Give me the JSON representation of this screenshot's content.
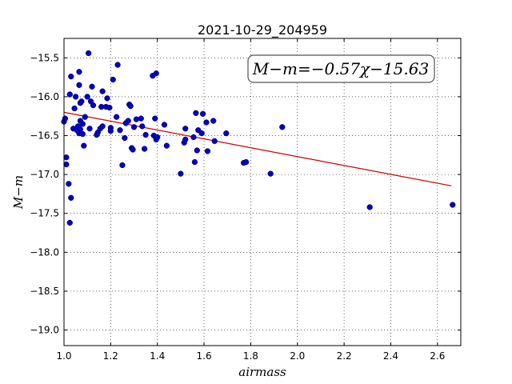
{
  "chart_data": {
    "type": "scatter",
    "title": "2021-10-29_204959",
    "xlabel": "airmass",
    "ylabel": "M−m",
    "xlim": [
      1.0,
      2.7
    ],
    "ylim": [
      -19.2,
      -15.25
    ],
    "y_inverted": true,
    "grid": true,
    "xticks": [
      1.0,
      1.2,
      1.4,
      1.6,
      1.8,
      2.0,
      2.2,
      2.4,
      2.6
    ],
    "xtick_labels": [
      "1.0",
      "1.2",
      "1.4",
      "1.6",
      "1.8",
      "2.0",
      "2.2",
      "2.4",
      "2.6"
    ],
    "yticks": [
      -15.5,
      -16.0,
      -16.5,
      -17.0,
      -17.5,
      -18.0,
      -18.5,
      -19.0
    ],
    "ytick_labels": [
      "−15.5",
      "−16.0",
      "−16.5",
      "−17.0",
      "−17.5",
      "−18.0",
      "−18.5",
      "−19.0"
    ],
    "annotation": "M−m=−0.57χ−15.63",
    "fit": {
      "slope": -0.57,
      "intercept": -15.63,
      "x_range": [
        1.0,
        2.66
      ],
      "color": "#cc0000"
    },
    "marker_color": "#0000cc",
    "points": [
      [
        1.0,
        -16.32
      ],
      [
        1.005,
        -16.28
      ],
      [
        1.01,
        -16.78
      ],
      [
        1.01,
        -16.87
      ],
      [
        1.02,
        -17.12
      ],
      [
        1.025,
        -17.62
      ],
      [
        1.03,
        -17.3
      ],
      [
        1.025,
        -15.97
      ],
      [
        1.03,
        -15.74
      ],
      [
        1.04,
        -16.41
      ],
      [
        1.045,
        -16.15
      ],
      [
        1.05,
        -16.0
      ],
      [
        1.055,
        -16.43
      ],
      [
        1.06,
        -16.38
      ],
      [
        1.065,
        -16.47
      ],
      [
        1.065,
        -15.85
      ],
      [
        1.065,
        -15.68
      ],
      [
        1.07,
        -16.08
      ],
      [
        1.07,
        -16.31
      ],
      [
        1.07,
        -16.42
      ],
      [
        1.075,
        -16.06
      ],
      [
        1.08,
        -16.35
      ],
      [
        1.08,
        -16.48
      ],
      [
        1.085,
        -16.63
      ],
      [
        1.09,
        -16.26
      ],
      [
        1.1,
        -16.0
      ],
      [
        1.105,
        -15.44
      ],
      [
        1.11,
        -16.41
      ],
      [
        1.115,
        -16.06
      ],
      [
        1.12,
        -15.87
      ],
      [
        1.125,
        -16.11
      ],
      [
        1.14,
        -16.49
      ],
      [
        1.145,
        -16.46
      ],
      [
        1.155,
        -16.41
      ],
      [
        1.16,
        -16.13
      ],
      [
        1.165,
        -15.93
      ],
      [
        1.165,
        -16.38
      ],
      [
        1.18,
        -16.13
      ],
      [
        1.185,
        -16.02
      ],
      [
        1.195,
        -16.14
      ],
      [
        1.2,
        -16.4
      ],
      [
        1.2,
        -16.44
      ],
      [
        1.21,
        -15.78
      ],
      [
        1.225,
        -16.26
      ],
      [
        1.23,
        -15.59
      ],
      [
        1.24,
        -16.43
      ],
      [
        1.25,
        -16.88
      ],
      [
        1.26,
        -16.53
      ],
      [
        1.265,
        -16.34
      ],
      [
        1.275,
        -16.31
      ],
      [
        1.28,
        -16.1
      ],
      [
        1.285,
        -16.12
      ],
      [
        1.29,
        -16.66
      ],
      [
        1.295,
        -16.68
      ],
      [
        1.3,
        -16.39
      ],
      [
        1.31,
        -16.29
      ],
      [
        1.33,
        -16.28
      ],
      [
        1.335,
        -16.38
      ],
      [
        1.345,
        -16.67
      ],
      [
        1.35,
        -16.49
      ],
      [
        1.38,
        -15.73
      ],
      [
        1.385,
        -16.5
      ],
      [
        1.39,
        -16.28
      ],
      [
        1.395,
        -16.55
      ],
      [
        1.395,
        -15.7
      ],
      [
        1.4,
        -16.52
      ],
      [
        1.43,
        -16.36
      ],
      [
        1.44,
        -16.63
      ],
      [
        1.5,
        -16.99
      ],
      [
        1.515,
        -16.59
      ],
      [
        1.52,
        -16.55
      ],
      [
        1.52,
        -16.41
      ],
      [
        1.555,
        -16.52
      ],
      [
        1.56,
        -16.84
      ],
      [
        1.565,
        -16.21
      ],
      [
        1.57,
        -16.69
      ],
      [
        1.575,
        -16.43
      ],
      [
        1.59,
        -16.47
      ],
      [
        1.595,
        -16.22
      ],
      [
        1.61,
        -16.33
      ],
      [
        1.615,
        -16.7
      ],
      [
        1.64,
        -16.31
      ],
      [
        1.645,
        -16.57
      ],
      [
        1.695,
        -16.47
      ],
      [
        1.77,
        -16.85
      ],
      [
        1.78,
        -16.84
      ],
      [
        1.885,
        -16.99
      ],
      [
        1.935,
        -16.39
      ],
      [
        2.31,
        -17.42
      ],
      [
        2.665,
        -17.39
      ]
    ]
  }
}
